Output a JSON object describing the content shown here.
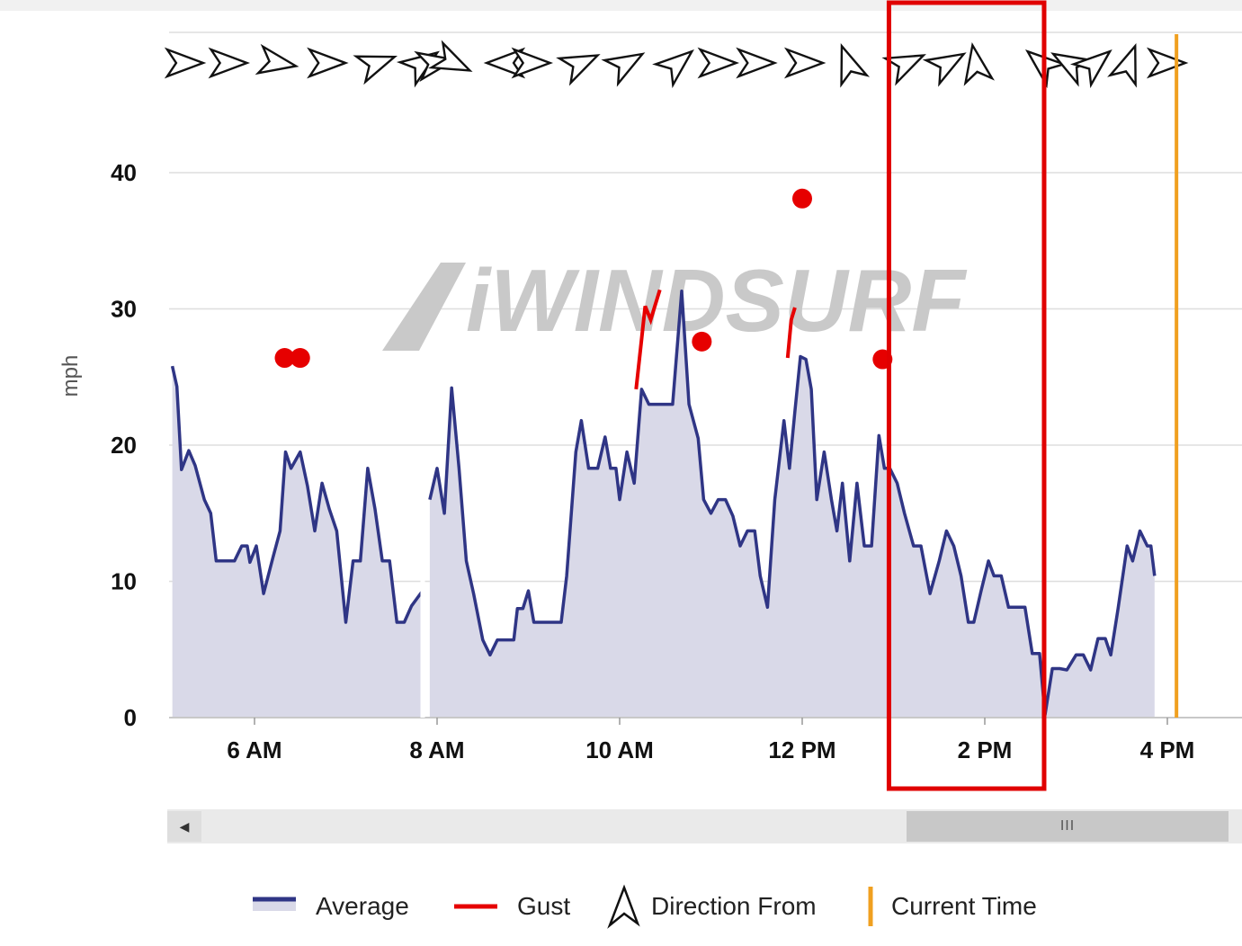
{
  "chart_data": {
    "type": "area",
    "ylabel": "mph",
    "ylim": [
      0,
      50
    ],
    "yticks": [
      0,
      10,
      20,
      30,
      40
    ],
    "xlim_hours": [
      5.1,
      15.85
    ],
    "xticks": [
      {
        "hour": 6,
        "label": "6 AM"
      },
      {
        "hour": 8,
        "label": "8 AM"
      },
      {
        "hour": 10,
        "label": "10 AM"
      },
      {
        "hour": 12,
        "label": "12 PM"
      },
      {
        "hour": 14,
        "label": "2 PM"
      },
      {
        "hour": 16,
        "label": "4 PM"
      }
    ],
    "watermark": "iWINDSURF",
    "current_time_hour": 16.1,
    "highlight_range_hours": [
      12.95,
      14.65
    ],
    "series": [
      {
        "name": "Average",
        "color": "#2f3585",
        "fill": "#d9d9e8",
        "segments": [
          [
            [
              5.1,
              25.8
            ],
            [
              5.15,
              24.3
            ],
            [
              5.2,
              18.2
            ],
            [
              5.28,
              19.6
            ],
            [
              5.35,
              18.5
            ],
            [
              5.45,
              16
            ],
            [
              5.52,
              15
            ],
            [
              5.58,
              11.5
            ],
            [
              5.68,
              11.5
            ],
            [
              5.78,
              11.5
            ],
            [
              5.86,
              12.6
            ],
            [
              5.92,
              12.6
            ],
            [
              5.95,
              11.4
            ],
            [
              6.02,
              12.6
            ],
            [
              6.1,
              9.1
            ],
            [
              6.2,
              11.7
            ],
            [
              6.28,
              13.7
            ],
            [
              6.34,
              19.5
            ],
            [
              6.4,
              18.3
            ],
            [
              6.5,
              19.5
            ],
            [
              6.58,
              17
            ],
            [
              6.66,
              13.7
            ],
            [
              6.74,
              17.2
            ],
            [
              6.82,
              15.3
            ],
            [
              6.9,
              13.7
            ],
            [
              7.0,
              7.0
            ],
            [
              7.08,
              11.5
            ],
            [
              7.16,
              11.5
            ],
            [
              7.24,
              18.3
            ],
            [
              7.32,
              15.3
            ],
            [
              7.4,
              11.5
            ],
            [
              7.48,
              11.5
            ],
            [
              7.56,
              7.0
            ],
            [
              7.64,
              7.0
            ],
            [
              7.72,
              8.2
            ],
            [
              7.84,
              9.3
            ]
          ],
          [
            [
              7.92,
              16
            ],
            [
              8.0,
              18.3
            ],
            [
              8.08,
              15
            ],
            [
              8.16,
              24.2
            ],
            [
              8.24,
              18.3
            ],
            [
              8.32,
              11.5
            ],
            [
              8.4,
              9.1
            ],
            [
              8.5,
              5.7
            ],
            [
              8.58,
              4.6
            ],
            [
              8.66,
              5.7
            ],
            [
              8.76,
              5.7
            ],
            [
              8.84,
              5.7
            ],
            [
              8.88,
              8
            ],
            [
              8.94,
              8
            ],
            [
              9.0,
              9.3
            ],
            [
              9.06,
              7.0
            ],
            [
              9.14,
              7.0
            ],
            [
              9.26,
              7.0
            ],
            [
              9.36,
              7.0
            ],
            [
              9.42,
              10.4
            ],
            [
              9.52,
              19.5
            ],
            [
              9.58,
              21.8
            ],
            [
              9.66,
              18.3
            ],
            [
              9.76,
              18.3
            ],
            [
              9.84,
              20.6
            ],
            [
              9.9,
              18.3
            ],
            [
              9.96,
              18.3
            ],
            [
              10.0,
              16
            ],
            [
              10.08,
              19.5
            ],
            [
              10.16,
              17.2
            ],
            [
              10.24,
              24.1
            ],
            [
              10.32,
              23
            ],
            [
              10.4,
              23
            ],
            [
              10.5,
              23
            ],
            [
              10.58,
              23
            ],
            [
              10.68,
              31.3
            ],
            [
              10.76,
              23
            ],
            [
              10.86,
              20.5
            ],
            [
              10.92,
              16
            ],
            [
              11.0,
              15
            ],
            [
              11.08,
              16
            ],
            [
              11.16,
              16
            ],
            [
              11.24,
              14.8
            ],
            [
              11.32,
              12.6
            ],
            [
              11.4,
              13.7
            ],
            [
              11.48,
              13.7
            ],
            [
              11.54,
              10.4
            ],
            [
              11.62,
              8.1
            ],
            [
              11.7,
              16
            ],
            [
              11.8,
              21.8
            ],
            [
              11.86,
              18.3
            ],
            [
              11.92,
              22.5
            ],
            [
              11.98,
              26.5
            ],
            [
              12.04,
              26.3
            ],
            [
              12.1,
              24.1
            ],
            [
              12.16,
              16
            ],
            [
              12.24,
              19.5
            ],
            [
              12.32,
              16
            ],
            [
              12.38,
              13.7
            ],
            [
              12.44,
              17.2
            ],
            [
              12.52,
              11.5
            ],
            [
              12.6,
              17.2
            ],
            [
              12.68,
              12.6
            ],
            [
              12.76,
              12.6
            ],
            [
              12.84,
              20.7
            ],
            [
              12.9,
              18.3
            ],
            [
              12.96,
              18.3
            ],
            [
              13.04,
              17.2
            ],
            [
              13.12,
              15
            ],
            [
              13.22,
              12.6
            ],
            [
              13.3,
              12.6
            ],
            [
              13.4,
              9.1
            ],
            [
              13.5,
              11.5
            ],
            [
              13.58,
              13.7
            ],
            [
              13.66,
              12.6
            ],
            [
              13.74,
              10.4
            ],
            [
              13.82,
              7.0
            ],
            [
              13.88,
              7.0
            ],
            [
              13.96,
              9.3
            ],
            [
              14.04,
              11.5
            ],
            [
              14.1,
              10.4
            ],
            [
              14.18,
              10.4
            ],
            [
              14.26,
              8.1
            ],
            [
              14.34,
              8.1
            ],
            [
              14.44,
              8.1
            ],
            [
              14.52,
              4.7
            ],
            [
              14.6,
              4.7
            ],
            [
              14.66,
              0.2
            ],
            [
              14.74,
              3.6
            ],
            [
              14.82,
              3.6
            ],
            [
              14.9,
              3.5
            ],
            [
              15.0,
              4.6
            ],
            [
              15.08,
              4.6
            ],
            [
              15.16,
              3.5
            ],
            [
              15.24,
              5.8
            ],
            [
              15.32,
              5.8
            ],
            [
              15.38,
              4.6
            ],
            [
              15.46,
              8
            ],
            [
              15.56,
              12.6
            ],
            [
              15.62,
              11.5
            ],
            [
              15.7,
              13.7
            ],
            [
              15.78,
              12.6
            ],
            [
              15.82,
              12.6
            ],
            [
              15.86,
              10.4
            ]
          ]
        ]
      },
      {
        "name": "Gust",
        "color": "#e60000",
        "points": [
          [
            6.33,
            26.4
          ],
          [
            6.5,
            26.4
          ],
          [
            10.9,
            27.6
          ],
          [
            12.0,
            38.1
          ],
          [
            12.88,
            26.3
          ]
        ],
        "segments": [
          [
            [
              10.18,
              24.1
            ],
            [
              10.28,
              30.2
            ],
            [
              10.34,
              29.2
            ],
            [
              10.44,
              31.4
            ]
          ],
          [
            [
              11.84,
              26.4
            ],
            [
              11.88,
              29.2
            ],
            [
              11.92,
              30.1
            ]
          ]
        ]
      }
    ],
    "direction_arrows": [
      {
        "hour": 5.24,
        "angle": 0
      },
      {
        "hour": 5.72,
        "angle": 0
      },
      {
        "hour": 6.26,
        "angle": 10
      },
      {
        "hour": 6.8,
        "angle": 0
      },
      {
        "hour": 7.35,
        "angle": -20
      },
      {
        "hour": 7.84,
        "angle": -35
      },
      {
        "hour": 8.0,
        "angle": -10
      },
      {
        "hour": 8.18,
        "angle": 25
      },
      {
        "hour": 8.74,
        "angle": 180
      },
      {
        "hour": 9.04,
        "angle": 0
      },
      {
        "hour": 9.58,
        "angle": -25
      },
      {
        "hour": 10.08,
        "angle": -30
      },
      {
        "hour": 10.64,
        "angle": -40
      },
      {
        "hour": 11.08,
        "angle": 0
      },
      {
        "hour": 11.5,
        "angle": 0
      },
      {
        "hour": 12.03,
        "angle": 0
      },
      {
        "hour": 12.5,
        "angle": -110
      },
      {
        "hour": 13.15,
        "angle": -25
      },
      {
        "hour": 13.6,
        "angle": -30
      },
      {
        "hour": 13.9,
        "angle": -100
      },
      {
        "hour": 14.62,
        "angle": -140
      },
      {
        "hour": 14.92,
        "angle": -150
      },
      {
        "hour": 15.22,
        "angle": -40
      },
      {
        "hour": 15.58,
        "angle": -70
      },
      {
        "hour": 16.0,
        "angle": 0
      }
    ],
    "legend": [
      {
        "label": "Average",
        "kind": "area-line",
        "color": "#2f3585"
      },
      {
        "label": "Gust",
        "kind": "line",
        "color": "#e60000"
      },
      {
        "label": "Direction From",
        "kind": "arrow"
      },
      {
        "label": "Current Time",
        "kind": "vline",
        "color": "#f0a020"
      }
    ]
  },
  "scrollbar": {
    "left_arrow": "◀",
    "thumb_grip": "III"
  },
  "colors": {
    "grid": "#dedede",
    "current_time": "#f0a020",
    "highlight_box": "#e00000",
    "watermark": "#c9c9c9"
  }
}
